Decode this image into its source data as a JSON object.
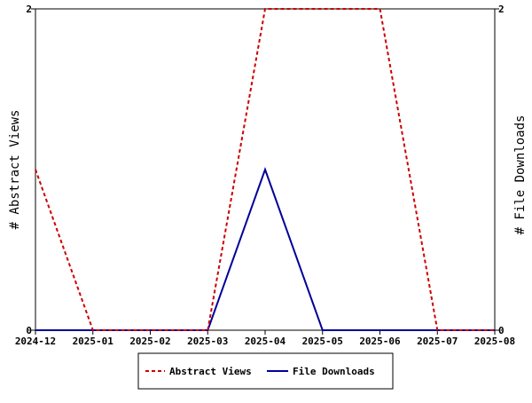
{
  "chart_data": {
    "type": "line",
    "x": [
      "2024-12",
      "2025-01",
      "2025-02",
      "2025-03",
      "2025-04",
      "2025-05",
      "2025-06",
      "2025-07",
      "2025-08"
    ],
    "xlim": [
      "2024-12",
      "2025-08"
    ],
    "series": [
      {
        "name": "Abstract Views",
        "axis": "left",
        "color": "#cc0000",
        "style": "dashed",
        "values": [
          1,
          0,
          0,
          0,
          2,
          2,
          2,
          0,
          0
        ]
      },
      {
        "name": "File Downloads",
        "axis": "right",
        "color": "#000099",
        "style": "solid",
        "values": [
          0,
          0,
          0,
          0,
          1,
          0,
          0,
          0,
          0
        ]
      }
    ],
    "ylabel_left": "# Abstract Views",
    "ylabel_right": "# File Downloads",
    "ylim_left": [
      0,
      2
    ],
    "ylim_right": [
      0,
      2
    ],
    "yticks_left": [
      0,
      2
    ],
    "yticks_right": [
      0,
      2
    ],
    "grid": false,
    "legend_position": "bottom-center"
  }
}
